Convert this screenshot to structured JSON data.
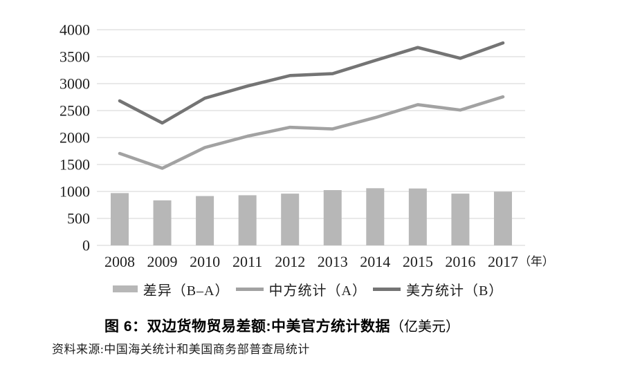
{
  "figure": {
    "title_main": "图 6：双边货物贸易差额:中美官方统计数据",
    "title_unit": "（亿美元）",
    "source": "资料来源:中国海关统计和美国商务部普查局统计"
  },
  "colors": {
    "bar": "#b7b7b7",
    "line_a": "#a2a2a2",
    "line_b": "#747474",
    "gridline": "#dcdcdc",
    "text": "#1f1f1f"
  },
  "chart_data": {
    "type": "bar",
    "subtype": "bar-line-combo",
    "title": "图 6：双边货物贸易差额:中美官方统计数据（亿美元）",
    "categories": [
      "2008",
      "2009",
      "2010",
      "2011",
      "2012",
      "2013",
      "2014",
      "2015",
      "2016",
      "2017"
    ],
    "x_unit": "（年）",
    "series": [
      {
        "name": "差异（B–A）",
        "render": "bar",
        "color_key": "bar",
        "values": [
          970,
          835,
          915,
          930,
          960,
          1025,
          1060,
          1055,
          960,
          995
        ]
      },
      {
        "name": "中方统计（A）",
        "render": "line",
        "color_key": "line_a",
        "values": [
          1705,
          1430,
          1815,
          2025,
          2190,
          2160,
          2370,
          2610,
          2510,
          2755
        ]
      },
      {
        "name": "美方统计（B）",
        "render": "line",
        "color_key": "line_b",
        "values": [
          2680,
          2270,
          2730,
          2955,
          3150,
          3185,
          3430,
          3670,
          3470,
          3755
        ]
      }
    ],
    "ylim": [
      0,
      4000
    ],
    "y_step": 500,
    "y_ticks": [
      "0",
      "500",
      "1000",
      "1500",
      "2000",
      "2500",
      "3000",
      "3500",
      "4000"
    ],
    "grid": true,
    "legend_position": "bottom"
  }
}
